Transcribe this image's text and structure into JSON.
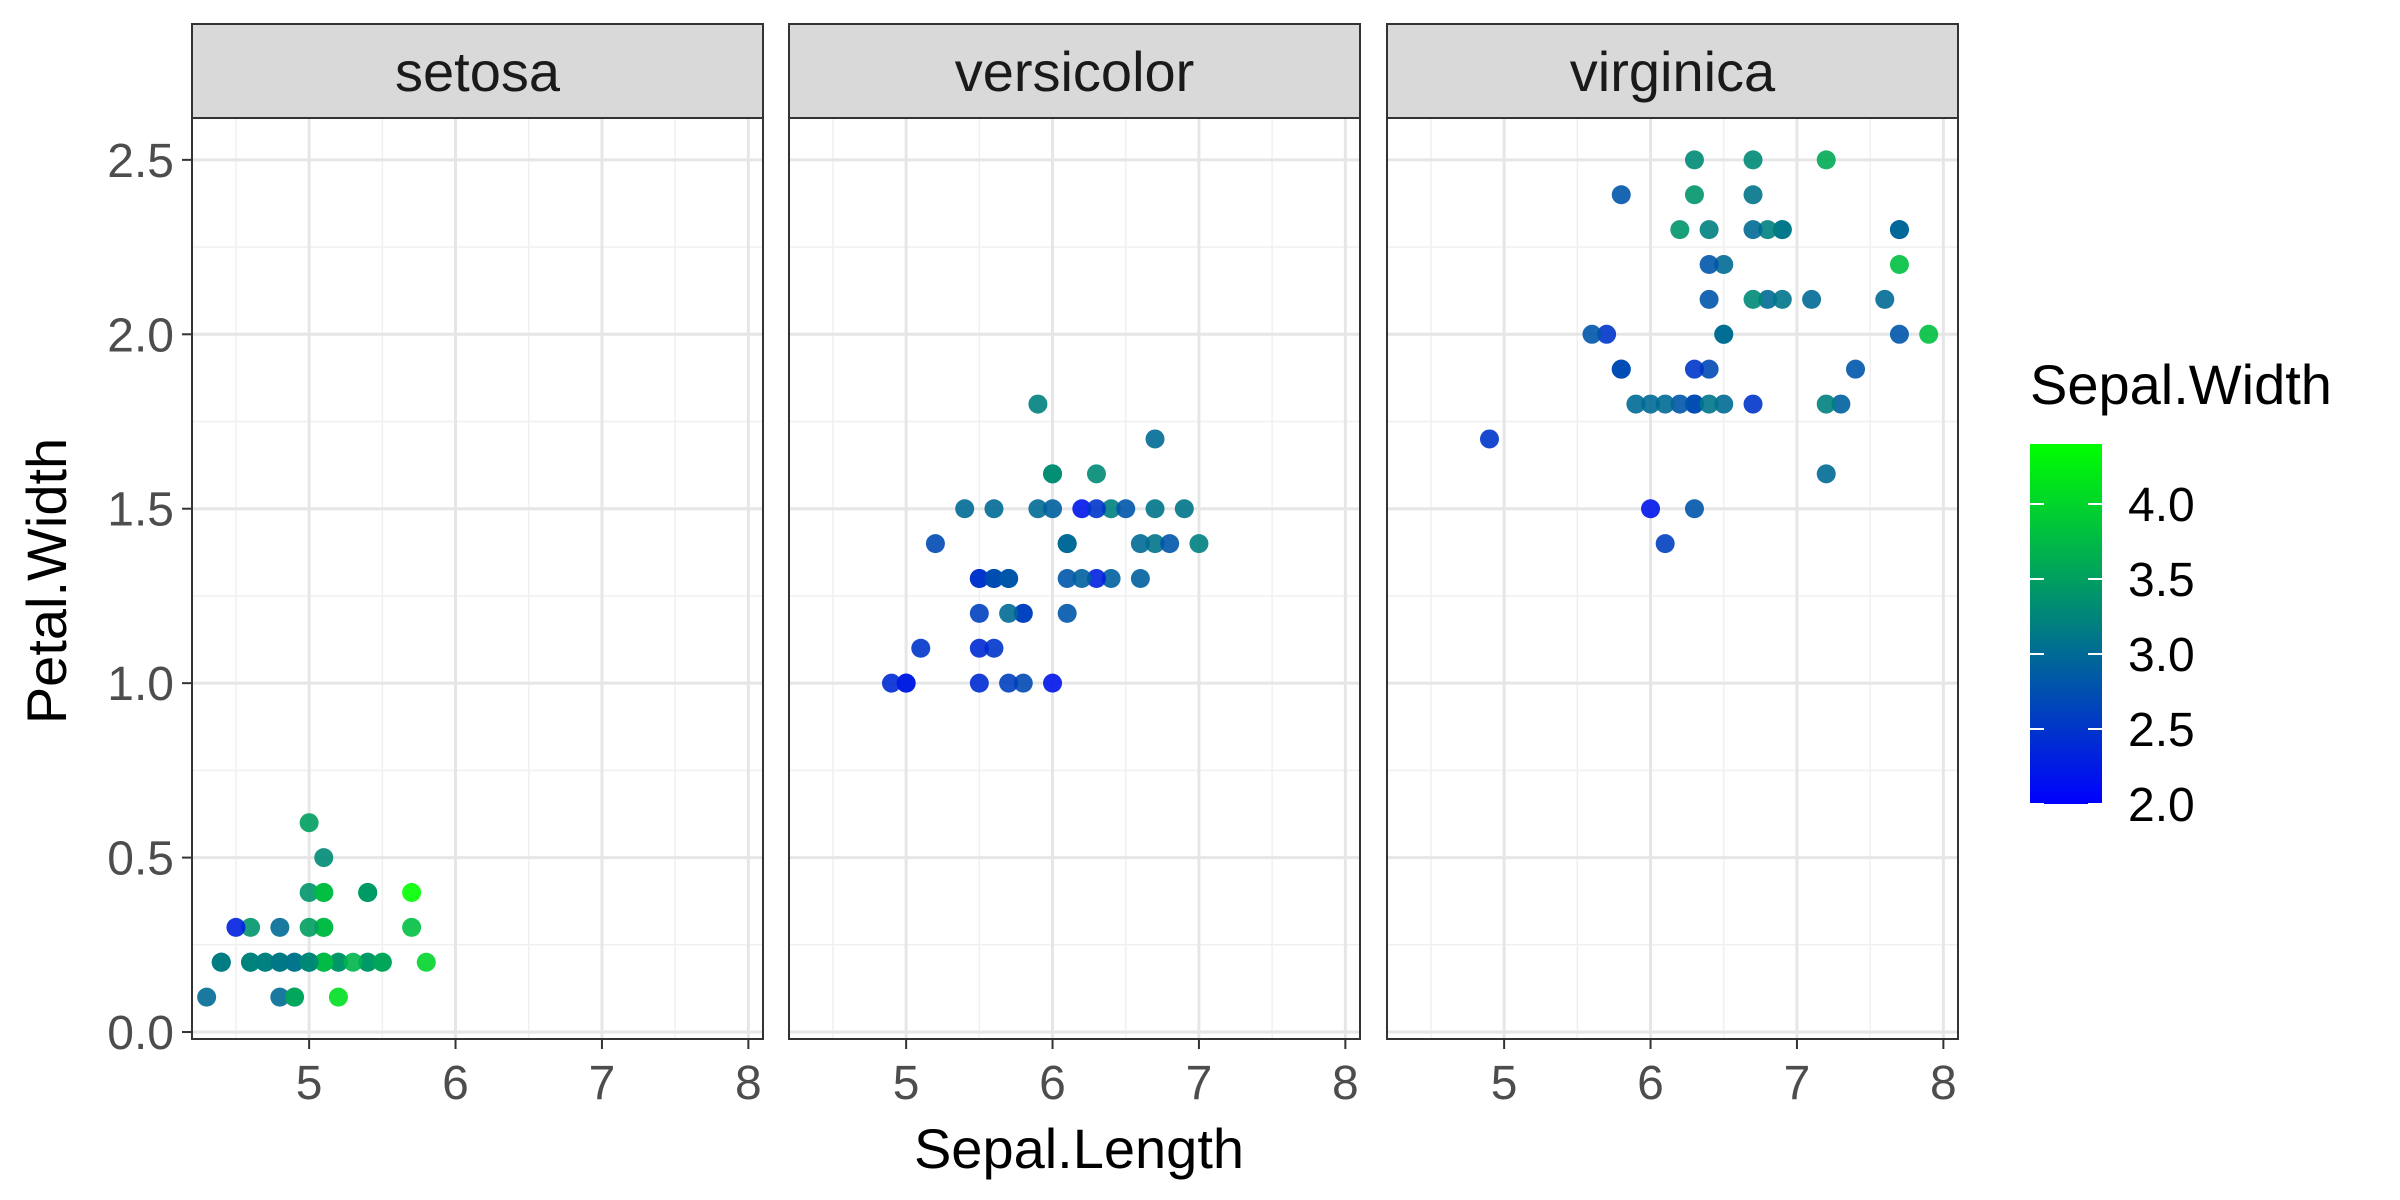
{
  "chart_data": {
    "type": "scatter",
    "xlabel": "Sepal.Length",
    "ylabel": "Petal.Width",
    "xlim": [
      4.2,
      8.1
    ],
    "ylim": [
      -0.02,
      2.62
    ],
    "x_ticks": [
      5,
      6,
      7,
      8
    ],
    "y_ticks": [
      0.0,
      0.5,
      1.0,
      1.5,
      2.0,
      2.5
    ],
    "x_tick_labels": [
      "5",
      "6",
      "7",
      "8"
    ],
    "y_tick_labels": [
      "0.0",
      "0.5",
      "1.0",
      "1.5",
      "2.0",
      "2.5"
    ],
    "grid": true,
    "color_scale": {
      "title": "Sepal.Width",
      "low": 2.0,
      "high": 4.4,
      "low_color": "#0000FF",
      "high_color": "#00FF00",
      "breaks": [
        2.0,
        2.5,
        3.0,
        3.5,
        4.0
      ],
      "break_labels": [
        "2.0",
        "2.5",
        "3.0",
        "3.5",
        "4.0"
      ],
      "legend_position": "right"
    },
    "facets": [
      {
        "label": "setosa",
        "points": [
          [
            5.1,
            0.2,
            3.5
          ],
          [
            4.9,
            0.2,
            3.0
          ],
          [
            4.7,
            0.2,
            3.2
          ],
          [
            4.6,
            0.2,
            3.1
          ],
          [
            5.0,
            0.2,
            3.6
          ],
          [
            5.4,
            0.4,
            3.9
          ],
          [
            4.6,
            0.3,
            3.4
          ],
          [
            5.0,
            0.2,
            3.4
          ],
          [
            4.4,
            0.2,
            2.9
          ],
          [
            4.9,
            0.1,
            3.1
          ],
          [
            5.4,
            0.2,
            3.7
          ],
          [
            4.8,
            0.2,
            3.4
          ],
          [
            4.8,
            0.1,
            3.0
          ],
          [
            4.3,
            0.1,
            3.0
          ],
          [
            5.8,
            0.2,
            4.0
          ],
          [
            5.7,
            0.4,
            4.4
          ],
          [
            5.4,
            0.4,
            3.9
          ],
          [
            5.1,
            0.3,
            3.5
          ],
          [
            5.7,
            0.3,
            3.8
          ],
          [
            5.1,
            0.3,
            3.8
          ],
          [
            5.4,
            0.2,
            3.4
          ],
          [
            5.1,
            0.4,
            3.7
          ],
          [
            4.6,
            0.2,
            3.6
          ],
          [
            5.1,
            0.5,
            3.3
          ],
          [
            4.8,
            0.2,
            3.4
          ],
          [
            5.0,
            0.2,
            3.0
          ],
          [
            5.0,
            0.4,
            3.4
          ],
          [
            5.2,
            0.2,
            3.5
          ],
          [
            5.2,
            0.2,
            3.4
          ],
          [
            4.7,
            0.2,
            3.2
          ],
          [
            4.8,
            0.2,
            3.1
          ],
          [
            5.4,
            0.4,
            3.4
          ],
          [
            5.2,
            0.1,
            4.1
          ],
          [
            5.5,
            0.2,
            4.2
          ],
          [
            4.9,
            0.2,
            3.1
          ],
          [
            5.0,
            0.2,
            3.2
          ],
          [
            5.5,
            0.2,
            3.5
          ],
          [
            4.9,
            0.1,
            3.6
          ],
          [
            4.4,
            0.2,
            3.0
          ],
          [
            5.1,
            0.2,
            3.4
          ],
          [
            5.0,
            0.3,
            3.5
          ],
          [
            4.5,
            0.3,
            2.3
          ],
          [
            4.4,
            0.2,
            3.2
          ],
          [
            5.0,
            0.6,
            3.5
          ],
          [
            5.1,
            0.4,
            3.8
          ],
          [
            4.8,
            0.3,
            3.0
          ],
          [
            5.1,
            0.2,
            3.8
          ],
          [
            4.6,
            0.2,
            3.2
          ],
          [
            5.3,
            0.2,
            3.7
          ],
          [
            5.0,
            0.2,
            3.3
          ]
        ]
      },
      {
        "label": "versicolor",
        "points": [
          [
            7.0,
            1.4,
            3.2
          ],
          [
            6.4,
            1.5,
            3.2
          ],
          [
            6.9,
            1.5,
            3.1
          ],
          [
            5.5,
            1.3,
            2.3
          ],
          [
            6.5,
            1.5,
            2.8
          ],
          [
            5.7,
            1.3,
            2.8
          ],
          [
            6.3,
            1.6,
            3.3
          ],
          [
            4.9,
            1.0,
            2.4
          ],
          [
            6.6,
            1.3,
            2.9
          ],
          [
            5.2,
            1.4,
            2.7
          ],
          [
            5.0,
            1.0,
            2.0
          ],
          [
            5.9,
            1.5,
            3.0
          ],
          [
            6.0,
            1.0,
            2.2
          ],
          [
            6.1,
            1.4,
            2.9
          ],
          [
            5.6,
            1.3,
            2.9
          ],
          [
            6.7,
            1.4,
            3.1
          ],
          [
            5.6,
            1.5,
            3.0
          ],
          [
            5.8,
            1.0,
            2.7
          ],
          [
            6.2,
            1.5,
            2.2
          ],
          [
            5.6,
            1.1,
            2.5
          ],
          [
            5.9,
            1.8,
            3.2
          ],
          [
            6.1,
            1.3,
            2.8
          ],
          [
            6.3,
            1.5,
            2.5
          ],
          [
            6.1,
            1.2,
            2.8
          ],
          [
            6.4,
            1.3,
            2.9
          ],
          [
            6.6,
            1.4,
            3.0
          ],
          [
            6.8,
            1.4,
            2.8
          ],
          [
            6.7,
            1.7,
            3.0
          ],
          [
            6.0,
            1.5,
            2.9
          ],
          [
            5.7,
            1.0,
            2.6
          ],
          [
            5.5,
            1.1,
            2.4
          ],
          [
            5.5,
            1.0,
            2.4
          ],
          [
            5.8,
            1.2,
            2.7
          ],
          [
            6.0,
            1.6,
            2.7
          ],
          [
            5.4,
            1.5,
            3.0
          ],
          [
            6.0,
            1.6,
            3.4
          ],
          [
            6.7,
            1.5,
            3.1
          ],
          [
            6.3,
            1.3,
            2.3
          ],
          [
            5.6,
            1.3,
            3.0
          ],
          [
            5.5,
            1.3,
            2.5
          ],
          [
            5.5,
            1.2,
            2.6
          ],
          [
            6.1,
            1.4,
            3.0
          ],
          [
            5.8,
            1.2,
            2.6
          ],
          [
            5.0,
            1.0,
            2.3
          ],
          [
            5.6,
            1.3,
            2.7
          ],
          [
            5.7,
            1.2,
            3.0
          ],
          [
            5.7,
            1.3,
            2.9
          ],
          [
            6.2,
            1.3,
            2.9
          ],
          [
            5.1,
            1.1,
            2.5
          ],
          [
            5.7,
            1.3,
            2.8
          ]
        ]
      },
      {
        "label": "virginica",
        "points": [
          [
            6.3,
            2.5,
            3.3
          ],
          [
            5.8,
            1.9,
            2.7
          ],
          [
            7.1,
            2.1,
            3.0
          ],
          [
            6.3,
            1.8,
            2.9
          ],
          [
            6.5,
            2.2,
            3.0
          ],
          [
            7.6,
            2.1,
            3.0
          ],
          [
            4.9,
            1.7,
            2.5
          ],
          [
            7.3,
            1.8,
            2.9
          ],
          [
            6.7,
            1.8,
            2.5
          ],
          [
            7.2,
            2.5,
            3.6
          ],
          [
            6.5,
            2.0,
            3.2
          ],
          [
            6.4,
            1.9,
            2.7
          ],
          [
            6.8,
            2.1,
            3.0
          ],
          [
            5.7,
            2.0,
            2.5
          ],
          [
            5.8,
            2.4,
            2.8
          ],
          [
            6.4,
            2.3,
            3.2
          ],
          [
            6.5,
            1.8,
            3.0
          ],
          [
            7.7,
            2.2,
            3.8
          ],
          [
            7.7,
            2.3,
            2.6
          ],
          [
            6.0,
            1.5,
            2.2
          ],
          [
            6.9,
            2.3,
            3.2
          ],
          [
            5.6,
            2.0,
            2.8
          ],
          [
            7.7,
            2.0,
            2.8
          ],
          [
            6.3,
            1.8,
            2.7
          ],
          [
            6.7,
            2.1,
            3.3
          ],
          [
            7.2,
            1.8,
            3.2
          ],
          [
            6.2,
            1.8,
            2.8
          ],
          [
            6.1,
            1.8,
            3.0
          ],
          [
            6.4,
            2.1,
            2.8
          ],
          [
            7.2,
            1.6,
            3.0
          ],
          [
            7.4,
            1.9,
            2.8
          ],
          [
            7.9,
            2.0,
            3.8
          ],
          [
            6.4,
            2.2,
            2.8
          ],
          [
            6.3,
            1.5,
            2.8
          ],
          [
            6.1,
            1.4,
            2.6
          ],
          [
            7.7,
            2.3,
            3.0
          ],
          [
            6.3,
            2.4,
            3.4
          ],
          [
            6.4,
            1.8,
            3.1
          ],
          [
            6.0,
            1.8,
            3.0
          ],
          [
            6.9,
            2.1,
            3.1
          ],
          [
            6.7,
            2.4,
            3.1
          ],
          [
            6.9,
            2.3,
            3.1
          ],
          [
            5.8,
            1.9,
            2.7
          ],
          [
            6.8,
            2.3,
            3.2
          ],
          [
            6.7,
            2.5,
            3.3
          ],
          [
            6.7,
            2.3,
            3.0
          ],
          [
            6.3,
            1.9,
            2.5
          ],
          [
            6.5,
            2.0,
            3.0
          ],
          [
            6.2,
            2.3,
            3.4
          ],
          [
            5.9,
            1.8,
            3.0
          ]
        ]
      }
    ]
  }
}
